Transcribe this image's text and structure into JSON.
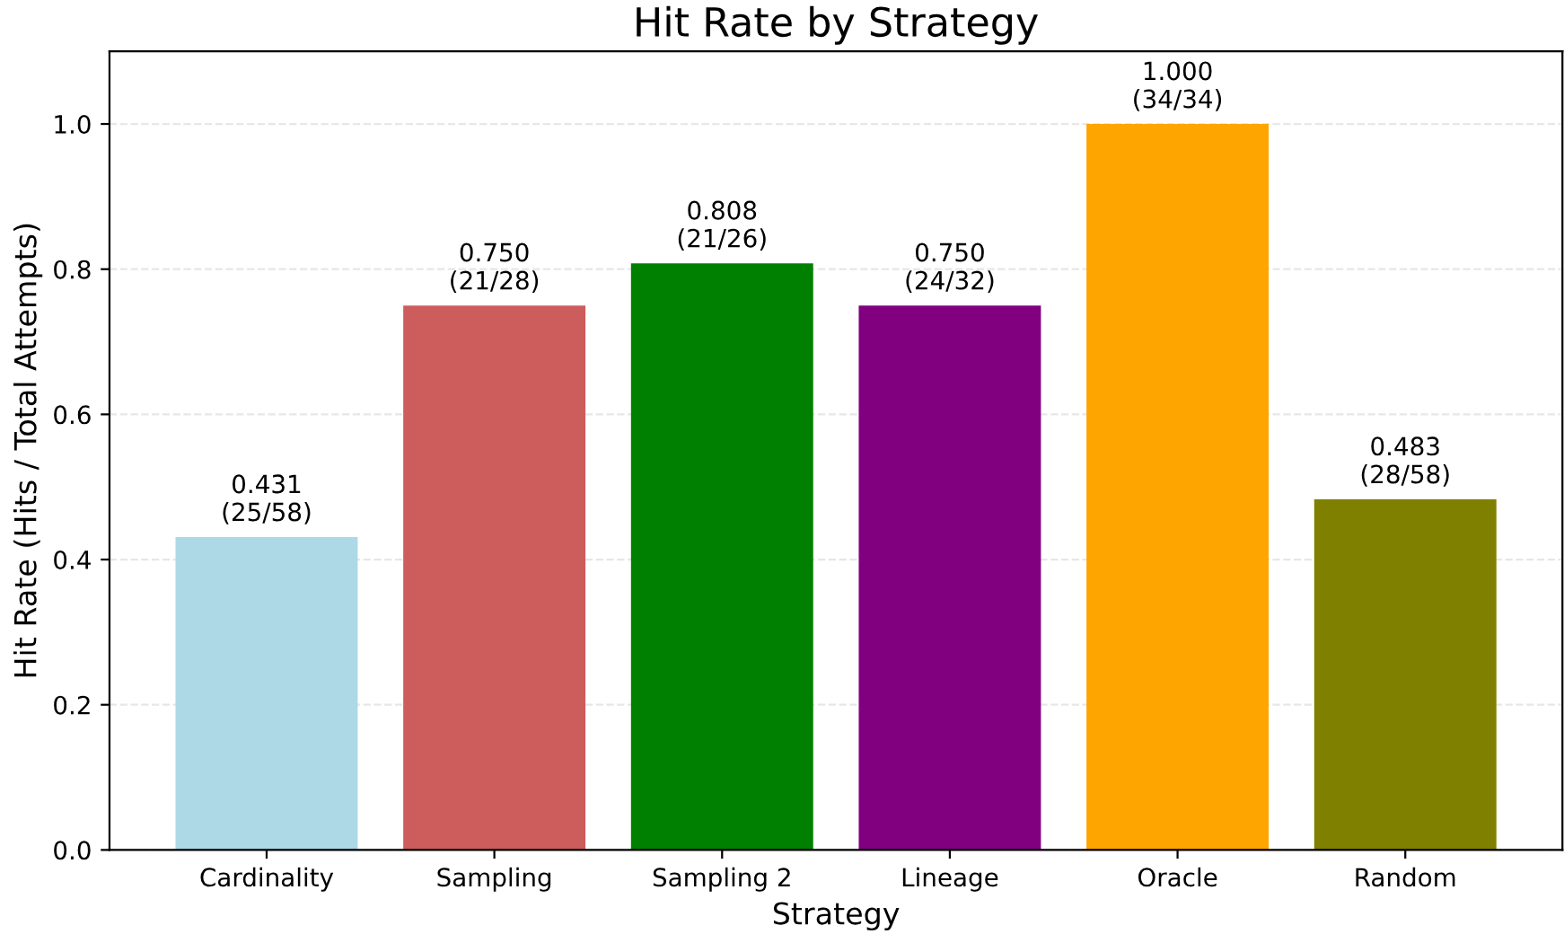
{
  "chart_data": {
    "type": "bar",
    "title": "Hit Rate by Strategy",
    "xlabel": "Strategy",
    "ylabel": "Hit Rate (Hits / Total Attempts)",
    "categories": [
      "Cardinality",
      "Sampling",
      "Sampling 2",
      "Lineage",
      "Oracle",
      "Random"
    ],
    "values": [
      0.431,
      0.75,
      0.808,
      0.75,
      1.0,
      0.483
    ],
    "colors": [
      "#add8e6",
      "#cd5c5c",
      "#008000",
      "#800080",
      "#ffa500",
      "#808000"
    ],
    "value_labels": [
      "0.431\n(25/58)",
      "0.750\n(21/28)",
      "0.808\n(21/26)",
      "0.750\n(24/32)",
      "1.000\n(34/34)",
      "0.483\n(28/58)"
    ],
    "ylim": [
      0,
      1.1
    ],
    "yticks": [
      {
        "value": 0,
        "label": "0.0"
      },
      {
        "value": 0.2,
        "label": "0.2"
      },
      {
        "value": 0.4,
        "label": "0.4"
      },
      {
        "value": 0.6,
        "label": "0.6"
      },
      {
        "value": 0.8,
        "label": "0.8"
      },
      {
        "value": 1.0,
        "label": "1.0"
      }
    ],
    "grid": "y"
  }
}
